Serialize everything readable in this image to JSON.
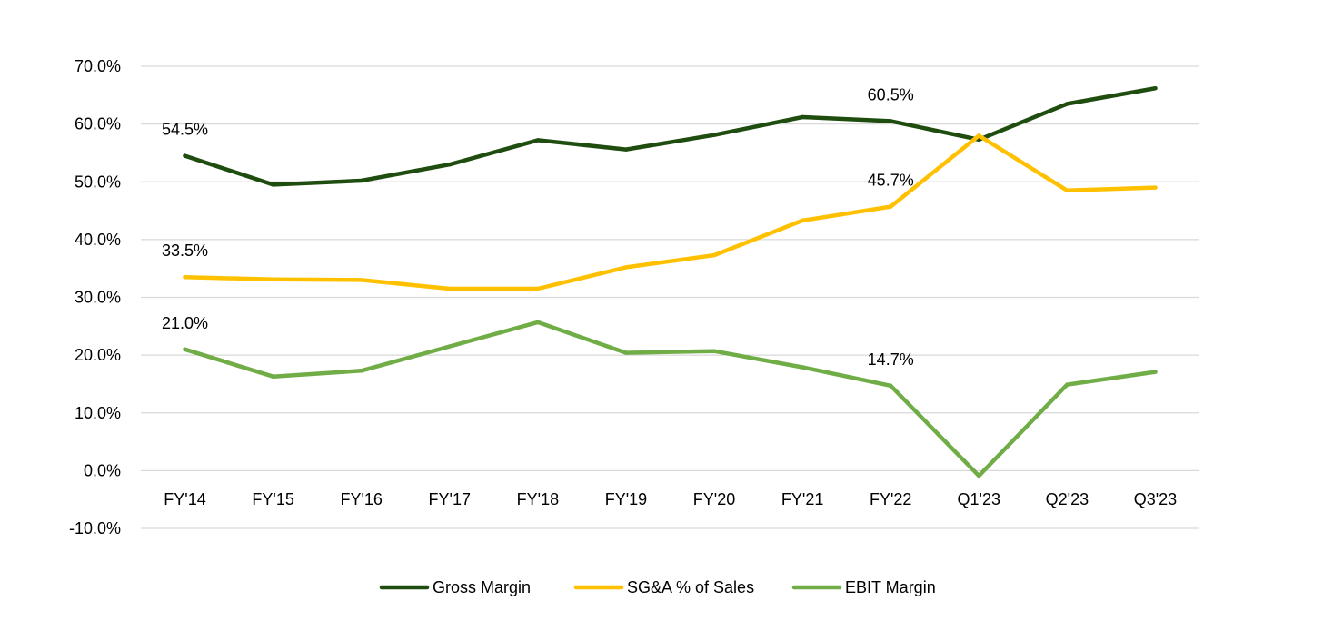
{
  "chart_data": {
    "type": "line",
    "title": "",
    "xlabel": "",
    "ylabel": "",
    "categories": [
      "FY'14",
      "FY'15",
      "FY'16",
      "FY'17",
      "FY'18",
      "FY'19",
      "FY'20",
      "FY'21",
      "FY'22",
      "Q1'23",
      "Q2'23",
      "Q3'23"
    ],
    "ylim": [
      -10,
      70
    ],
    "yticks": [
      -10,
      0,
      10,
      20,
      30,
      40,
      50,
      60,
      70
    ],
    "ytick_labels": [
      "-10.0%",
      "0.0%",
      "10.0%",
      "20.0%",
      "30.0%",
      "40.0%",
      "50.0%",
      "60.0%",
      "70.0%"
    ],
    "grid": true,
    "legend_position": "bottom",
    "series": [
      {
        "name": "Gross Margin",
        "color": "#1e4d0f",
        "values": [
          54.5,
          49.5,
          50.2,
          53.0,
          57.2,
          55.6,
          58.1,
          61.2,
          60.5,
          57.3,
          63.5,
          66.2
        ],
        "data_labels": [
          {
            "index": 0,
            "text": "54.5%"
          },
          {
            "index": 8,
            "text": "60.5%"
          }
        ]
      },
      {
        "name": "SG&A % of Sales",
        "color": "#ffc000",
        "values": [
          33.5,
          33.1,
          33.0,
          31.5,
          31.5,
          35.2,
          37.3,
          43.3,
          45.7,
          58.0,
          48.5,
          49.0
        ],
        "data_labels": [
          {
            "index": 0,
            "text": "33.5%"
          },
          {
            "index": 8,
            "text": "45.7%"
          }
        ]
      },
      {
        "name": "EBIT Margin",
        "color": "#70ad47",
        "values": [
          21.0,
          16.3,
          17.3,
          21.5,
          25.7,
          20.4,
          20.7,
          17.9,
          14.7,
          -0.9,
          14.9,
          17.1
        ],
        "data_labels": [
          {
            "index": 0,
            "text": "21.0%"
          },
          {
            "index": 8,
            "text": "14.7%"
          }
        ]
      }
    ]
  }
}
